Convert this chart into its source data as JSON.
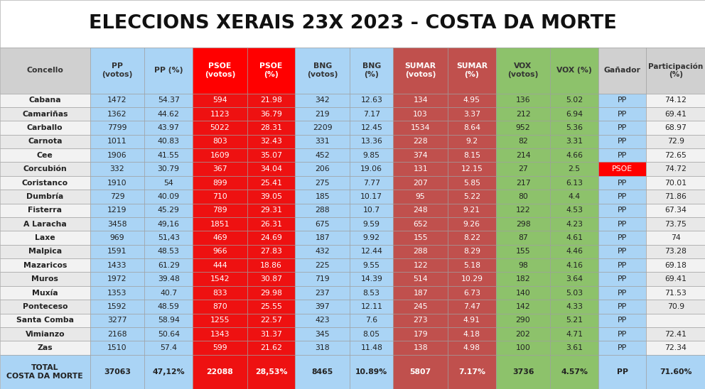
{
  "title": "ELECCIONS XERAIS 23X 2023 - COSTA DA MORTE",
  "columns": [
    "Concello",
    "PP\n(votos)",
    "PP (%)",
    "PSOE\n(votos)",
    "PSOE\n(%)",
    "BNG\n(votos)",
    "BNG\n(%)",
    "SUMAR\n(votos)",
    "SUMAR\n(%)",
    "VOX\n(votos)",
    "VOX (%)",
    "Gañador",
    "Participación\n(%)"
  ],
  "col_widths": [
    1.35,
    0.82,
    0.72,
    0.82,
    0.72,
    0.82,
    0.65,
    0.82,
    0.72,
    0.82,
    0.72,
    0.72,
    0.88
  ],
  "rows": [
    [
      "Cabana",
      "1472",
      "54.37",
      "594",
      "21.98",
      "342",
      "12.63",
      "134",
      "4.95",
      "136",
      "5.02",
      "PP",
      "74.12"
    ],
    [
      "Camariñas",
      "1362",
      "44.62",
      "1123",
      "36.79",
      "219",
      "7.17",
      "103",
      "3.37",
      "212",
      "6.94",
      "PP",
      "69.41"
    ],
    [
      "Carballo",
      "7799",
      "43.97",
      "5022",
      "28.31",
      "2209",
      "12.45",
      "1534",
      "8.64",
      "952",
      "5.36",
      "PP",
      "68.97"
    ],
    [
      "Carnota",
      "1011",
      "40.83",
      "803",
      "32.43",
      "331",
      "13.36",
      "228",
      "9.2",
      "82",
      "3.31",
      "PP",
      "72.9"
    ],
    [
      "Cee",
      "1906",
      "41.55",
      "1609",
      "35.07",
      "452",
      "9.85",
      "374",
      "8.15",
      "214",
      "4.66",
      "PP",
      "72.65"
    ],
    [
      "Corcubión",
      "332",
      "30.79",
      "367",
      "34.04",
      "206",
      "19.06",
      "131",
      "12.15",
      "27",
      "2.5",
      "PSOE",
      "74.72"
    ],
    [
      "Coristanco",
      "1910",
      "54",
      "899",
      "25.41",
      "275",
      "7.77",
      "207",
      "5.85",
      "217",
      "6.13",
      "PP",
      "70.01"
    ],
    [
      "Dumbría",
      "729",
      "40.09",
      "710",
      "39.05",
      "185",
      "10.17",
      "95",
      "5.22",
      "80",
      "4.4",
      "PP",
      "71.86"
    ],
    [
      "Fisterra",
      "1219",
      "45.29",
      "789",
      "29.31",
      "288",
      "10.7",
      "248",
      "9.21",
      "122",
      "4.53",
      "PP",
      "67.34"
    ],
    [
      "A Laracha",
      "3458",
      "49,16",
      "1851",
      "26.31",
      "675",
      "9.59",
      "652",
      "9.26",
      "298",
      "4.23",
      "PP",
      "73.75"
    ],
    [
      "Laxe",
      "969",
      "51,43",
      "469",
      "24.69",
      "187",
      "9.92",
      "155",
      "8.22",
      "87",
      "4.61",
      "PP",
      "74"
    ],
    [
      "Malpica",
      "1591",
      "48.53",
      "966",
      "27.83",
      "432",
      "12.44",
      "288",
      "8.29",
      "155",
      "4.46",
      "PP",
      "73.28"
    ],
    [
      "Mazaricos",
      "1433",
      "61.29",
      "444",
      "18.86",
      "225",
      "9.55",
      "122",
      "5.18",
      "98",
      "4.16",
      "PP",
      "69.18"
    ],
    [
      "Muros",
      "1972",
      "39.48",
      "1542",
      "30.87",
      "719",
      "14.39",
      "514",
      "10.29",
      "182",
      "3.64",
      "PP",
      "69.41"
    ],
    [
      "Muxía",
      "1353",
      "40.7",
      "833",
      "29.98",
      "237",
      "8.53",
      "187",
      "6.73",
      "140",
      "5.03",
      "PP",
      "71.53"
    ],
    [
      "Ponteceso",
      "1592",
      "48.59",
      "870",
      "25.55",
      "397",
      "12.11",
      "245",
      "7.47",
      "142",
      "4.33",
      "PP",
      "70.9"
    ],
    [
      "Santa Comba",
      "3277",
      "58.94",
      "1255",
      "22.57",
      "423",
      "7.6",
      "273",
      "4.91",
      "290",
      "5.21",
      "PP",
      ""
    ],
    [
      "Vimianzo",
      "2168",
      "50.64",
      "1343",
      "31.37",
      "345",
      "8.05",
      "179",
      "4.18",
      "202",
      "4.71",
      "PP",
      "72.41"
    ],
    [
      "Zas",
      "1510",
      "57.4",
      "599",
      "21.62",
      "318",
      "11.48",
      "138",
      "4.98",
      "100",
      "3.61",
      "PP",
      "72.34"
    ]
  ],
  "total_row": [
    "TOTAL\nCOSTA DA MORTE",
    "37063",
    "47,12%",
    "22088",
    "28,53%",
    "8465",
    "10.89%",
    "5807",
    "7.17%",
    "3736",
    "4.57%",
    "PP",
    "71.60%"
  ],
  "header_bg": [
    "#d0d0d0",
    "#aad4f5",
    "#aad4f5",
    "#ff0000",
    "#ff0000",
    "#aad4f5",
    "#aad4f5",
    "#c0504d",
    "#c0504d",
    "#8dc26b",
    "#8dc26b",
    "#d0d0d0",
    "#d0d0d0"
  ],
  "header_tc": [
    "#333333",
    "#333333",
    "#333333",
    "#ffffff",
    "#ffffff",
    "#333333",
    "#333333",
    "#ffffff",
    "#ffffff",
    "#333333",
    "#333333",
    "#333333",
    "#333333"
  ],
  "data_col_bg": [
    "none",
    "#aad4f5",
    "#aad4f5",
    "#ee1111",
    "#ee1111",
    "#aad4f5",
    "#aad4f5",
    "#c0504d",
    "#c0504d",
    "#8dc26b",
    "#8dc26b",
    "winner",
    "none"
  ],
  "data_col_tc": [
    "#222222",
    "#222222",
    "#222222",
    "#ffffff",
    "#ffffff",
    "#222222",
    "#222222",
    "#ffffff",
    "#ffffff",
    "#222222",
    "#222222",
    "#222222",
    "#222222"
  ],
  "total_col_bg": [
    "#aad4f5",
    "#aad4f5",
    "#aad4f5",
    "#ee1111",
    "#ee1111",
    "#aad4f5",
    "#aad4f5",
    "#c0504d",
    "#c0504d",
    "#8dc26b",
    "#8dc26b",
    "#aad4f5",
    "#aad4f5"
  ],
  "total_col_tc": [
    "#222222",
    "#222222",
    "#222222",
    "#ffffff",
    "#ffffff",
    "#222222",
    "#222222",
    "#ffffff",
    "#ffffff",
    "#222222",
    "#222222",
    "#222222",
    "#222222"
  ],
  "row_bg": [
    "#f2f2f2",
    "#e8e8e8"
  ],
  "psoe_winner_bg": "#ff0000",
  "psoe_winner_tc": "#ffffff",
  "pp_winner_bg": "#aad4f5",
  "pp_winner_tc": "#222222"
}
